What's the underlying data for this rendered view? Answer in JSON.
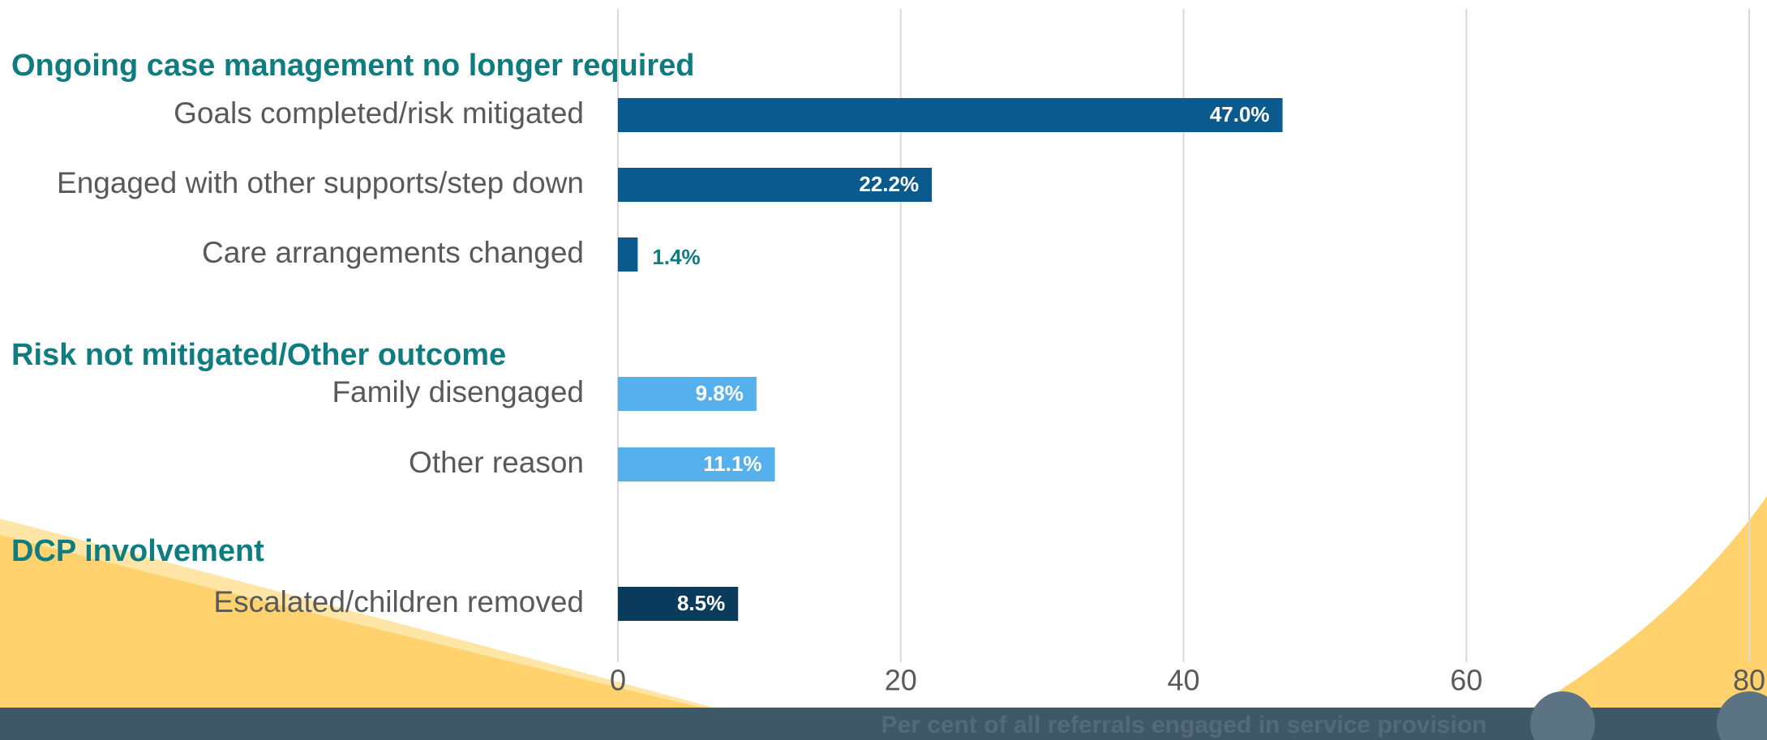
{
  "chart_data": {
    "type": "bar",
    "orientation": "horizontal",
    "xlabel": "Per cent of all referrals engaged in service provision",
    "xlim": [
      0,
      80
    ],
    "xticks": [
      0,
      20,
      40,
      60,
      80
    ],
    "grid": true,
    "series": [
      {
        "name": "Ongoing case management no longer required",
        "color": "#0b5a8e",
        "categories": [
          "Goals completed/risk mitigated",
          "Engaged with other supports/step down",
          "Care arrangements changed"
        ],
        "values": [
          47.0,
          22.2,
          1.4
        ],
        "value_labels": [
          "47.0%",
          "22.2%",
          "1.4%"
        ]
      },
      {
        "name": "Risk not mitigated/Other outcome",
        "color": "#56b0ec",
        "categories": [
          "Family disengaged",
          "Other reason"
        ],
        "values": [
          9.8,
          11.1
        ],
        "value_labels": [
          "9.8%",
          "11.1%"
        ]
      },
      {
        "name": "DCP involvement",
        "color": "#0a3a5c",
        "categories": [
          "Escalated/children removed"
        ],
        "values": [
          8.5
        ],
        "value_labels": [
          "8.5%"
        ]
      }
    ]
  }
}
